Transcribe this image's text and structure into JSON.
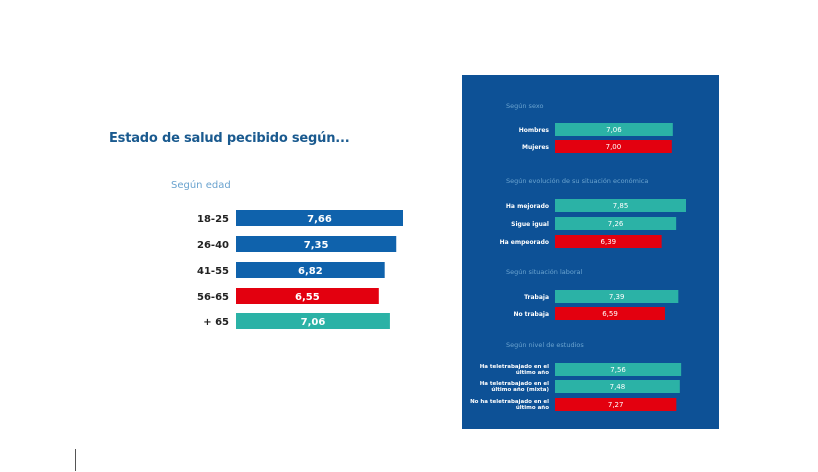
{
  "title": "Estado de salud pecibido según...",
  "colors": {
    "blue": "#0f62ac",
    "red": "#e3000f",
    "teal": "#2bb2a6",
    "panel": "#0d5196",
    "heading_light": "#6aa3cf"
  },
  "chart_data": [
    {
      "type": "bar",
      "orientation": "horizontal",
      "title": "Según edad",
      "categories": [
        "18-25",
        "26-40",
        "41-55",
        "56-65",
        "+ 65"
      ],
      "values": [
        7.66,
        7.35,
        6.82,
        6.55,
        7.06
      ],
      "labels": [
        "7,66",
        "7,35",
        "6,82",
        "6,55",
        "7,06"
      ],
      "colors": [
        "blue",
        "blue",
        "blue",
        "red",
        "teal"
      ]
    },
    {
      "type": "bar",
      "orientation": "horizontal",
      "title": "Según sexo",
      "categories": [
        "Hombres",
        "Mujeres"
      ],
      "values": [
        7.06,
        7.0
      ],
      "labels": [
        "7,06",
        "7,00"
      ],
      "colors": [
        "teal",
        "red"
      ]
    },
    {
      "type": "bar",
      "orientation": "horizontal",
      "title": "Según evolución de su situación económica",
      "categories": [
        "Ha mejorado",
        "Sigue igual",
        "Ha empeorado"
      ],
      "values": [
        7.85,
        7.26,
        6.39
      ],
      "labels": [
        "7,85",
        "7,26",
        "6,39"
      ],
      "colors": [
        "teal",
        "teal",
        "red"
      ]
    },
    {
      "type": "bar",
      "orientation": "horizontal",
      "title": "Según situación laboral",
      "categories": [
        "Trabaja",
        "No trabaja"
      ],
      "values": [
        7.39,
        6.59
      ],
      "labels": [
        "7,39",
        "6,59"
      ],
      "colors": [
        "teal",
        "red"
      ]
    },
    {
      "type": "bar",
      "orientation": "horizontal",
      "title": "Según nivel de estudios",
      "categories": [
        [
          "Ha teletrabajado en el",
          "último año"
        ],
        [
          "Ha teletrabajado en el",
          "último año (mixta)"
        ],
        [
          "No ha teletrabajado en el",
          "último año"
        ]
      ],
      "values": [
        7.56,
        7.48,
        7.27
      ],
      "labels": [
        "7,56",
        "7,48",
        "7,27"
      ],
      "colors": [
        "teal",
        "teal",
        "red"
      ]
    }
  ]
}
